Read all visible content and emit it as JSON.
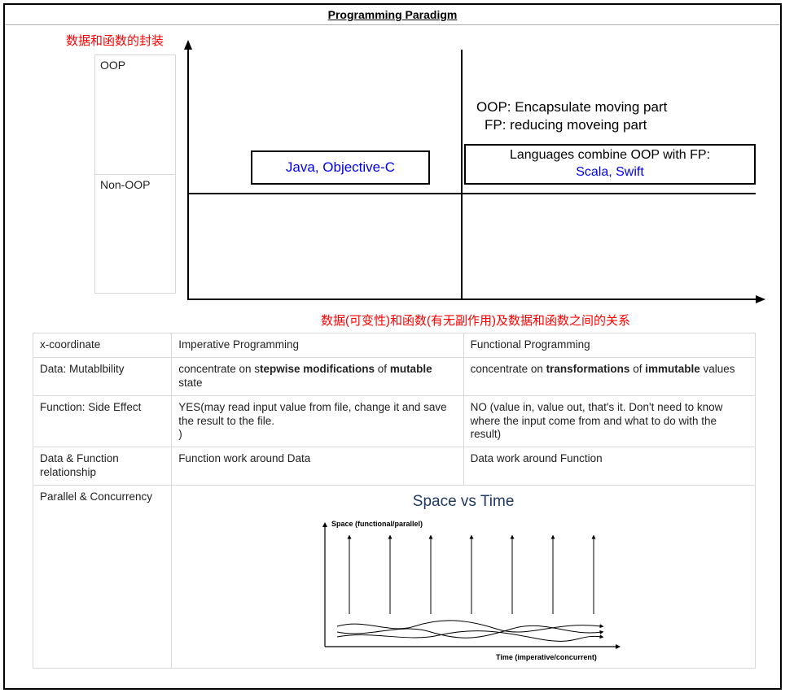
{
  "title": "Programming Paradigm",
  "diagram": {
    "y_label_red": "数据和函数的封装",
    "x_label_red": "数据(可变性)和函数(有无副作用)及数据和函数之间的关系",
    "y_categories": {
      "top": "OOP",
      "bottom": "Non-OOP"
    },
    "box_upper_left": "Java, Objective-C",
    "annotation_right": {
      "line1": "OOP: Encapsulate moving part",
      "line2": "FP: reducing moveing part"
    },
    "box_upper_right": {
      "line1": "Languages combine OOP with FP:",
      "line2": "Scala, Swift"
    },
    "colors": {
      "red": "#ff0000",
      "blue": "#0000ee",
      "border": "#000000",
      "grid": "#d8d8d8",
      "background": "#ffffff"
    }
  },
  "table": {
    "header": {
      "c1": "x-coordinate",
      "c2": "Imperative Programming",
      "c3": "Functional Programming"
    },
    "rows": [
      {
        "c1": "Data: Mutablbility",
        "c2_pre": "concentrate on s",
        "c2_bold": "tepwise modifications",
        "c2_mid": " of ",
        "c2_bold2": "mutable",
        "c2_post": " state",
        "c3_pre": "concentrate on ",
        "c3_bold": "transformations",
        "c3_mid": " of ",
        "c3_bold2": "immutable",
        "c3_post": " values"
      },
      {
        "c1": "Function: Side Effect",
        "c2": "YES(may read input value from file, change it and save the result to the file.\n)",
        "c3": "NO (value in, value out, that's it. Don't need to know where the input come from and what to do with the result)"
      },
      {
        "c1": "Data & Function relationship",
        "c2": "Function work around Data",
        "c3": "Data work around Function"
      },
      {
        "c1": "Parallel & Concurrency"
      }
    ]
  },
  "space_time": {
    "title": "Space vs Time",
    "y_axis_label": "Space (functional/parallel)",
    "x_axis_label": "Time (imperative/concurrent)",
    "arrow_count": 7,
    "title_color": "#203864"
  }
}
